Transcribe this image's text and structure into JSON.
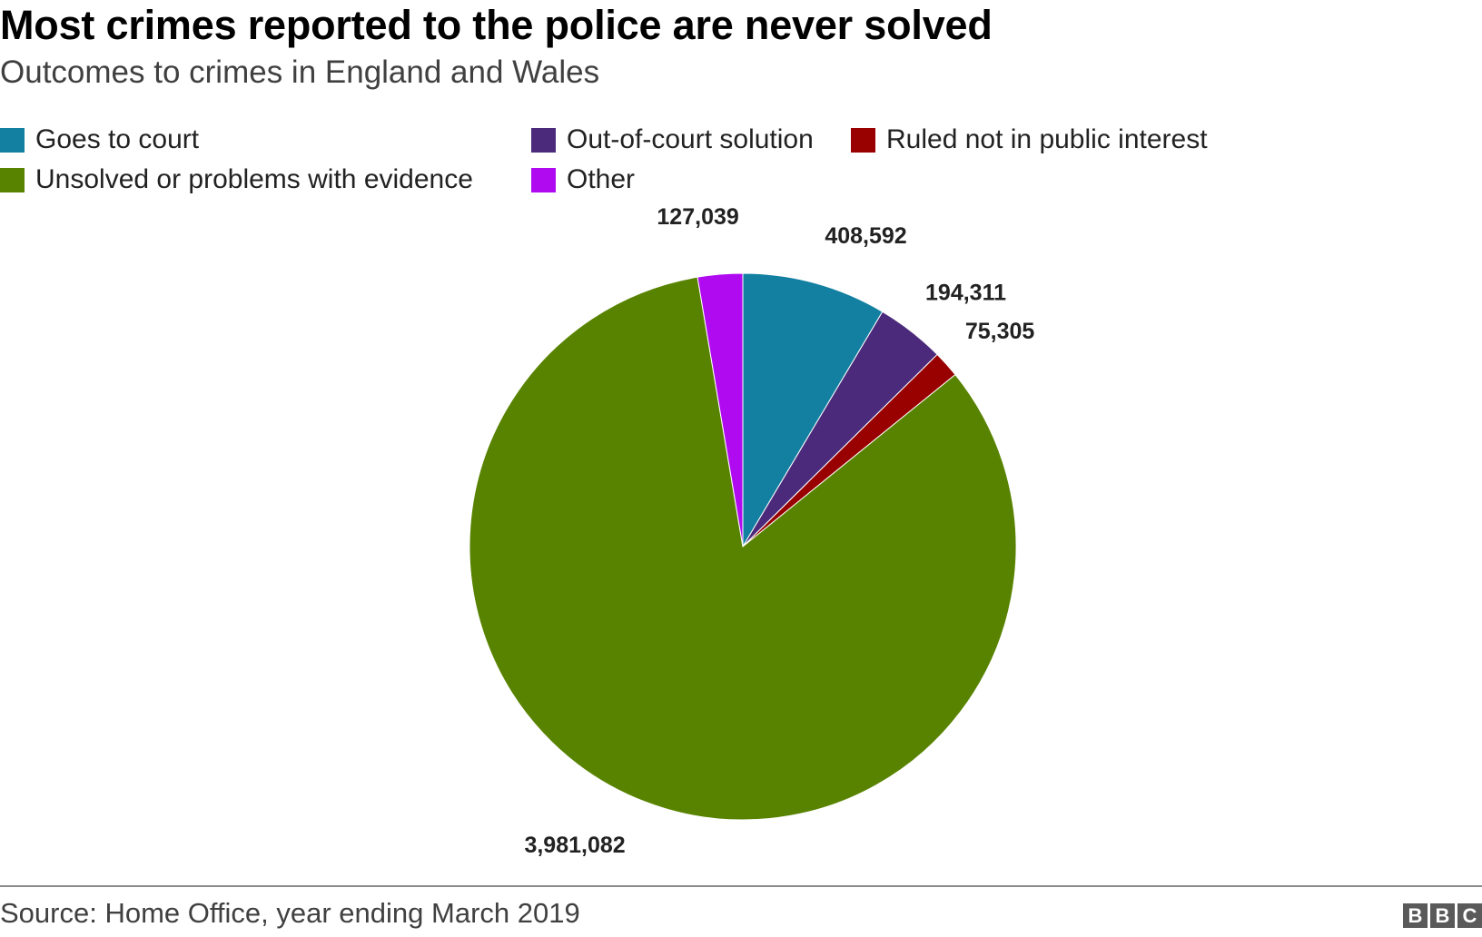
{
  "header": {
    "title": "Most crimes reported to the police are never solved",
    "subtitle": "Outcomes to crimes in England and Wales"
  },
  "legend": [
    {
      "label": "Goes to court",
      "color": "#1380A1"
    },
    {
      "label": "Out-of-court solution",
      "color": "#4B2A7B"
    },
    {
      "label": "Ruled not in public interest",
      "color": "#990000"
    },
    {
      "label": "Unsolved or problems with evidence",
      "color": "#588300"
    },
    {
      "label": "Other",
      "color": "#B00BF0"
    }
  ],
  "chart_data": {
    "type": "pie",
    "title": "Most crimes reported to the police are never solved",
    "subtitle": "Outcomes to crimes in England and Wales",
    "slices": [
      {
        "name": "Goes to court",
        "value": 408592,
        "label": "408,592",
        "color": "#1380A1"
      },
      {
        "name": "Out-of-court solution",
        "value": 194311,
        "label": "194,311",
        "color": "#4B2A7B"
      },
      {
        "name": "Ruled not in public interest",
        "value": 75305,
        "label": "75,305",
        "color": "#990000"
      },
      {
        "name": "Unsolved or problems with evidence",
        "value": 3981082,
        "label": "3,981,082",
        "color": "#588300"
      },
      {
        "name": "Other",
        "value": 127039,
        "label": "127,039",
        "color": "#B00BF0"
      }
    ]
  },
  "footer": {
    "source": "Source: Home Office, year ending March 2019",
    "logo_letters": [
      "B",
      "B",
      "C"
    ]
  }
}
